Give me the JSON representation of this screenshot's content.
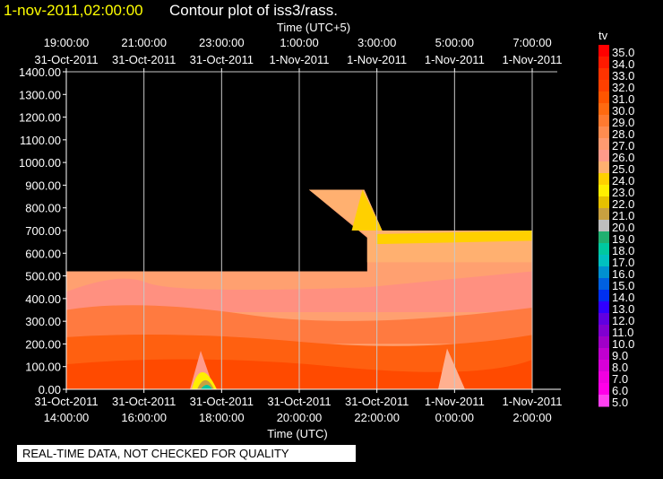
{
  "header": {
    "date_label": "1-nov-2011,02:00:00",
    "title": "Contour plot of iss3/rass."
  },
  "notice": "REAL-TIME DATA, NOT CHECKED FOR QUALITY",
  "chart_data": {
    "type": "heatmap",
    "title": "Contour plot of iss3/rass.",
    "top_axis": {
      "label": "Time (UTC+5)",
      "ticks": [
        {
          "time": "19:00:00",
          "date": "31-Oct-2011"
        },
        {
          "time": "21:00:00",
          "date": "31-Oct-2011"
        },
        {
          "time": "23:00:00",
          "date": "31-Oct-2011"
        },
        {
          "time": "1:00:00",
          "date": "1-Nov-2011"
        },
        {
          "time": "3:00:00",
          "date": "1-Nov-2011"
        },
        {
          "time": "5:00:00",
          "date": "1-Nov-2011"
        },
        {
          "time": "7:00:00",
          "date": "1-Nov-2011"
        }
      ]
    },
    "bottom_axis": {
      "label": "Time (UTC)",
      "ticks": [
        {
          "date": "31-Oct-2011",
          "time": "14:00:00"
        },
        {
          "date": "31-Oct-2011",
          "time": "16:00:00"
        },
        {
          "date": "31-Oct-2011",
          "time": "18:00:00"
        },
        {
          "date": "31-Oct-2011",
          "time": "20:00:00"
        },
        {
          "date": "31-Oct-2011",
          "time": "22:00:00"
        },
        {
          "date": "1-Nov-2011",
          "time": "0:00:00"
        },
        {
          "date": "1-Nov-2011",
          "time": "2:00:00"
        }
      ],
      "range_hours_utc": [
        "2011-10-31 14:00",
        "2011-11-01 02:00"
      ]
    },
    "y_axis": {
      "ticks": [
        "0.00",
        "100.00",
        "200.00",
        "300.00",
        "400.00",
        "500.00",
        "600.00",
        "700.00",
        "800.00",
        "900.00",
        "1000.00",
        "1100.00",
        "1200.00",
        "1300.00",
        "1400.00"
      ],
      "ylim": [
        0,
        1400
      ]
    },
    "grid": true,
    "colorbar": {
      "label": "tv",
      "levels": [
        "35.0",
        "34.0",
        "33.0",
        "32.0",
        "31.0",
        "30.0",
        "29.0",
        "28.0",
        "27.0",
        "26.0",
        "25.0",
        "24.0",
        "23.0",
        "22.0",
        "21.0",
        "20.0",
        "19.0",
        "18.0",
        "17.0",
        "16.0",
        "15.0",
        "14.0",
        "13.0",
        "12.0",
        "11.0",
        "10.0",
        "9.0",
        "8.0",
        "7.0",
        "6.0",
        "5.0"
      ],
      "colors": [
        "#ff0000",
        "#ff1a00",
        "#ff3300",
        "#ff4000",
        "#ff5500",
        "#ff6a10",
        "#ff7a30",
        "#ff8c50",
        "#ff9a70",
        "#ff9a8a",
        "#ffb070",
        "#ffd000",
        "#ffee00",
        "#e6c000",
        "#c8a040",
        "#bebebe",
        "#20b070",
        "#00c8a0",
        "#00c0c0",
        "#0090d0",
        "#0060e0",
        "#0030f0",
        "#3000ff",
        "#6000e0",
        "#8000d0",
        "#a000c8",
        "#c000d0",
        "#d800d8",
        "#f000e0",
        "#ff00e8",
        "#ff40f0"
      ]
    },
    "bands": [
      {
        "from_time": "2011-10-31 14:00",
        "to_time": "2011-10-31 21:45",
        "top_height": 520
      },
      {
        "from_time": "2011-10-31 21:45",
        "to_time": "2011-11-01 02:00",
        "top_height": 700
      },
      {
        "from_time": "2011-10-31 20:15",
        "to_time": "2011-10-31 21:10",
        "top_height": 880
      }
    ],
    "approx_values": [
      {
        "height_range": [
          0,
          150
        ],
        "tv": "30-32"
      },
      {
        "height_range": [
          150,
          350
        ],
        "tv": "29-30"
      },
      {
        "height_range": [
          350,
          520
        ],
        "tv": "27-28"
      },
      {
        "height_range": [
          520,
          700
        ],
        "tv": "25-27"
      },
      {
        "height_range": [
          600,
          700
        ],
        "tv": "23-24"
      }
    ]
  }
}
